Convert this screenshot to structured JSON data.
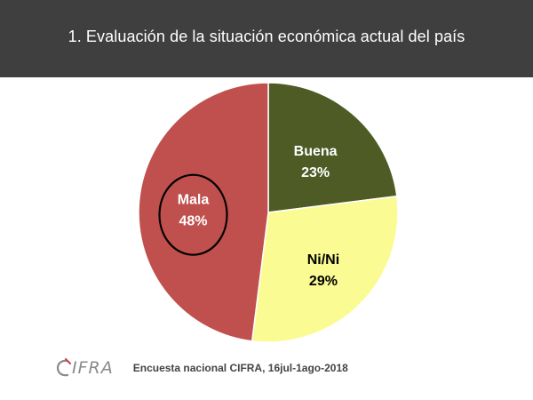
{
  "colors": {
    "header_bg": "#3f3f3f",
    "buena": "#4e5b24",
    "ninI": "#fbfb93",
    "mala": "#c0504d",
    "slice_border": "#ffffff",
    "label_light": "#ffffff",
    "label_dark": "#000000",
    "circle_outline": "#000000"
  },
  "header": {
    "title": "1. Evaluación de la situación económica actual del país"
  },
  "chart_data": {
    "type": "pie",
    "title": "1. Evaluación de la situación económica actual del país",
    "start_angle_deg": 0,
    "direction": "clockwise",
    "slices": [
      {
        "name": "Buena",
        "value": 23,
        "label": "23%",
        "color": "#4e5b24",
        "label_color": "#ffffff"
      },
      {
        "name": "Ni/Ni",
        "value": 29,
        "label": "29%",
        "color": "#fbfb93",
        "label_color": "#000000"
      },
      {
        "name": "Mala",
        "value": 48,
        "label": "48%",
        "color": "#c0504d",
        "label_color": "#ffffff",
        "highlighted": true
      }
    ],
    "annotations": [
      "Mala slice label is circled"
    ],
    "legend": "none"
  },
  "footer": {
    "logo_text": "IFRA",
    "source": "Encuesta nacional CIFRA, 16jul-1ago-2018"
  }
}
